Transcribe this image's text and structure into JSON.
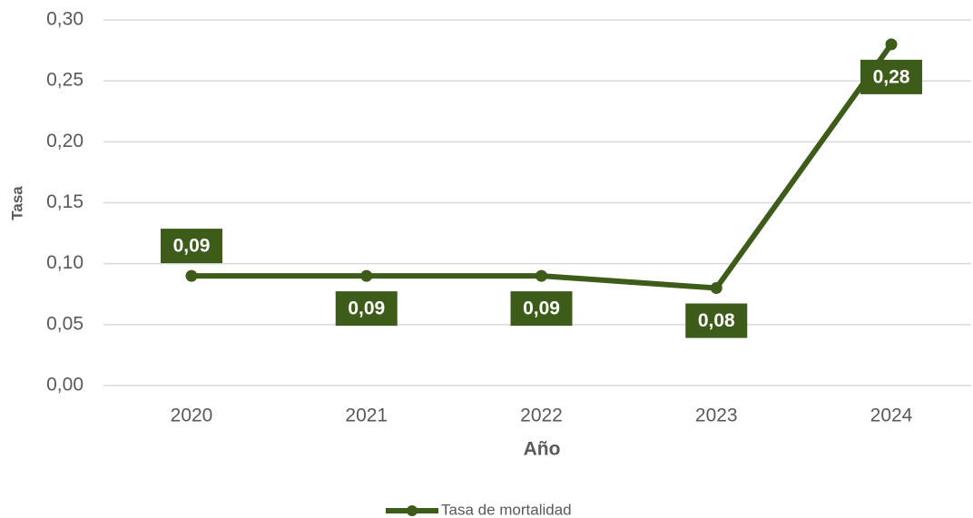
{
  "chart_data": {
    "type": "line",
    "x_label": "Año",
    "y_label": "Tasa",
    "categories": [
      "2020",
      "2021",
      "2022",
      "2023",
      "2024"
    ],
    "series": [
      {
        "name": "Tasa de mortalidad",
        "color": "#3d5c1a",
        "values": [
          0.09,
          0.09,
          0.09,
          0.08,
          0.28
        ],
        "value_labels": [
          "0,09",
          "0,09",
          "0,09",
          "0,08",
          "0,28"
        ]
      }
    ],
    "ylim": [
      0,
      0.3
    ],
    "yticks": [
      {
        "value": 0,
        "label": "0,00"
      },
      {
        "value": 0.05,
        "label": "0,05"
      },
      {
        "value": 0.1,
        "label": "0,10"
      },
      {
        "value": 0.15,
        "label": "0,15"
      },
      {
        "value": 0.2,
        "label": "0,20"
      },
      {
        "value": 0.25,
        "label": "0,25"
      },
      {
        "value": 0.3,
        "label": "0,30"
      }
    ],
    "grid": true,
    "legend": "bottom"
  }
}
